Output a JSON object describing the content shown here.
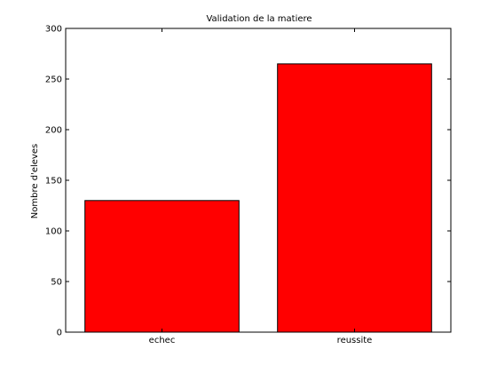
{
  "chart_data": {
    "type": "bar",
    "title": "Validation de la matiere",
    "xlabel": "",
    "ylabel": "Nombre d'eleves",
    "categories": [
      "echec",
      "reussite"
    ],
    "values": [
      130,
      265
    ],
    "ylim": [
      0,
      300
    ],
    "yticks": [
      0,
      50,
      100,
      150,
      200,
      250,
      300
    ],
    "grid": false,
    "bar_color": "#ff0000",
    "edge_color": "#000000"
  }
}
